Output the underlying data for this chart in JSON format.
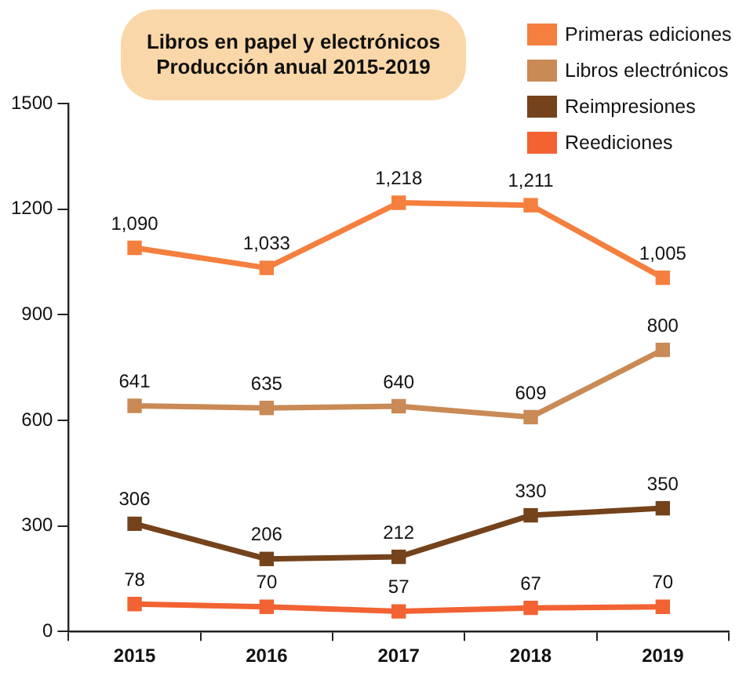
{
  "chart_data": {
    "type": "line",
    "title": "Libros en papel y electrónicos\nProducción anual 2015-2019",
    "categories": [
      "2015",
      "2016",
      "2017",
      "2018",
      "2019"
    ],
    "series": [
      {
        "name": "Primeras ediciones",
        "color": "#f47f3e",
        "values": [
          1090,
          1033,
          1218,
          1211,
          1005
        ],
        "value_labels": [
          "1,090",
          "1,033",
          "1,218",
          "1,211",
          "1,005"
        ]
      },
      {
        "name": "Libros electrónicos",
        "color": "#c98a56",
        "values": [
          641,
          635,
          640,
          609,
          800
        ],
        "value_labels": [
          "641",
          "635",
          "640",
          "609",
          "800"
        ]
      },
      {
        "name": "Reimpresiones",
        "color": "#74421b",
        "values": [
          306,
          206,
          212,
          330,
          350
        ],
        "value_labels": [
          "306",
          "206",
          "212",
          "330",
          "350"
        ]
      },
      {
        "name": "Reediciones",
        "color": "#f26232",
        "values": [
          78,
          70,
          57,
          67,
          70
        ],
        "value_labels": [
          "78",
          "70",
          "57",
          "67",
          "70"
        ]
      }
    ],
    "ylim": [
      0,
      1500
    ],
    "yticks": [
      0,
      300,
      600,
      900,
      1200,
      1500
    ],
    "grid": false,
    "legend": "top right",
    "marker": "square",
    "line_style": "solid"
  }
}
